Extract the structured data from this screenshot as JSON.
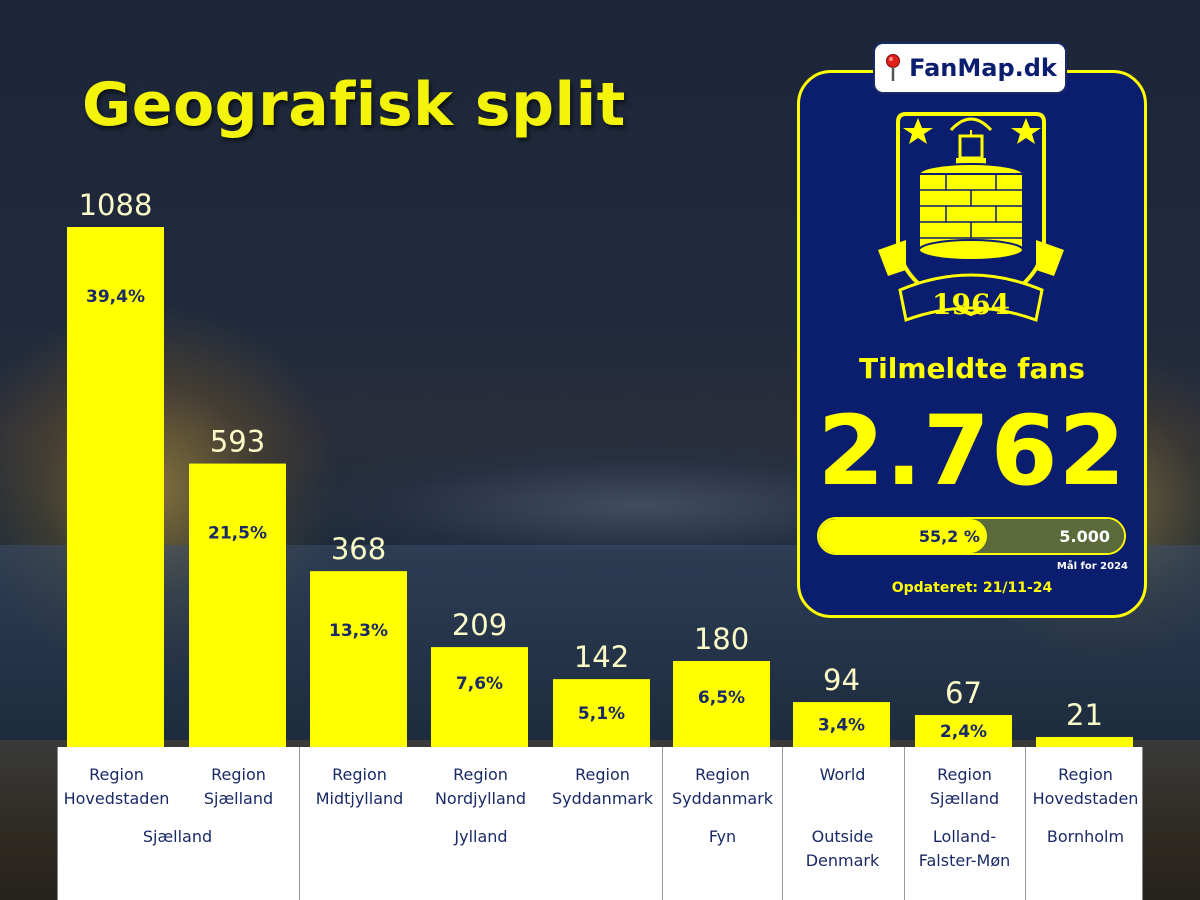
{
  "title": "Geografisk split",
  "chart_data": {
    "type": "bar",
    "categories": [
      "Region Hovedstaden",
      "Region Sjælland",
      "Region Midtjylland",
      "Region Nordjylland",
      "Region Syddanmark",
      "Region Syddanmark",
      "World",
      "Region Sjælland",
      "Region Hovedstaden"
    ],
    "category_lines": [
      [
        "Region",
        "Hovedstaden"
      ],
      [
        "Region",
        "Sjælland"
      ],
      [
        "Region",
        "Midtjylland"
      ],
      [
        "Region",
        "Nordjylland"
      ],
      [
        "Region",
        "Syddanmark"
      ],
      [
        "Region",
        "Syddanmark"
      ],
      [
        "World",
        ""
      ],
      [
        "Region",
        "Sjælland"
      ],
      [
        "Region",
        "Hovedstaden"
      ]
    ],
    "values": [
      1088,
      593,
      368,
      209,
      142,
      180,
      94,
      67,
      21
    ],
    "value_labels": [
      "1088",
      "593",
      "368",
      "209",
      "142",
      "180",
      "94",
      "67",
      "21"
    ],
    "percent_labels": [
      "39,4%",
      "21,5%",
      "13,3%",
      "7,6%",
      "5,1%",
      "6,5%",
      "3,4%",
      "2,4%",
      ""
    ],
    "groups": [
      {
        "name": "Sjælland",
        "lines": [
          "Sjælland"
        ],
        "span": [
          0,
          1
        ]
      },
      {
        "name": "Jylland",
        "lines": [
          "Jylland"
        ],
        "span": [
          2,
          4
        ]
      },
      {
        "name": "Fyn",
        "lines": [
          "Fyn"
        ],
        "span": [
          5,
          5
        ]
      },
      {
        "name": "Outside Denmark",
        "lines": [
          "Outside",
          "Denmark"
        ],
        "span": [
          6,
          6
        ]
      },
      {
        "name": "Lolland-Falster-Møn",
        "lines": [
          "Lolland-",
          "Falster-Møn"
        ],
        "span": [
          7,
          7
        ]
      },
      {
        "name": "Bornholm",
        "lines": [
          "Bornholm"
        ],
        "span": [
          8,
          8
        ]
      }
    ],
    "bar_color": "#ffff00",
    "ylim": [
      0,
      1088
    ],
    "grid": false,
    "title": "Geografisk split",
    "xlabel": "",
    "ylabel": ""
  },
  "card": {
    "brand": "FanMap.dk",
    "crest_year": "1964",
    "fans_label": "Tilmeldte fans",
    "fans_count": "2.762",
    "progress_fraction": 0.552,
    "progress_percent": "55,2 %",
    "goal": "5.000",
    "goal_caption": "Mål for 2024",
    "updated": "Opdateret: 21/11-24",
    "colors": {
      "background": "#0a1d6e",
      "accent": "#ffff00"
    }
  }
}
